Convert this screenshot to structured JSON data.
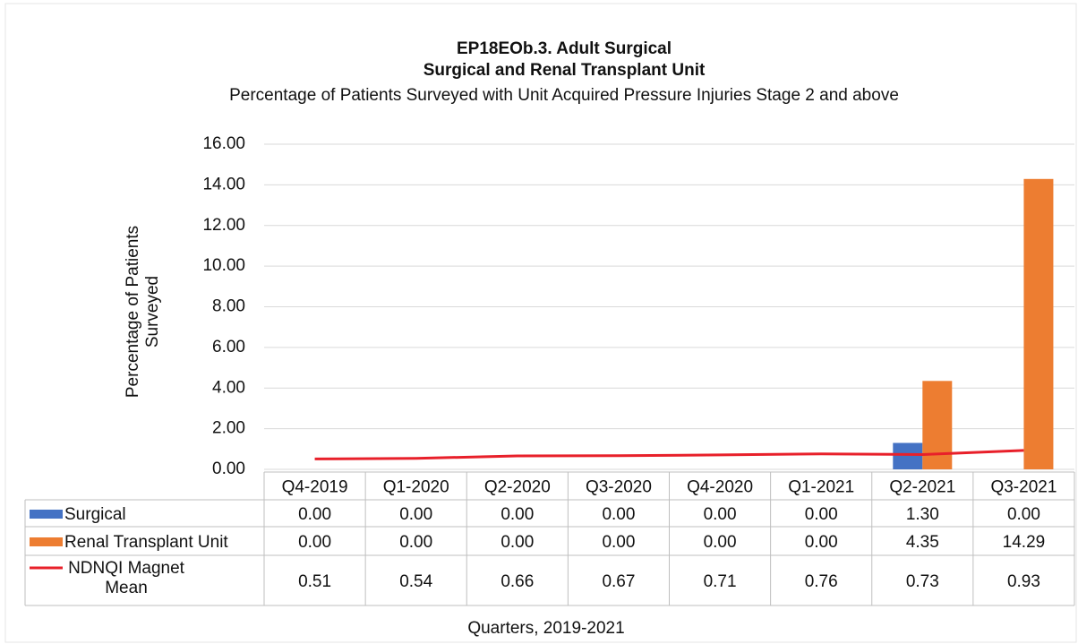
{
  "chart_data": {
    "type": "bar",
    "title": "EP18EOb.3.  Adult Surgical",
    "subtitle": "Surgical and Renal Transplant Unit",
    "description": "Percentage of Patients Surveyed with Unit Acquired Pressure Injuries Stage 2 and above",
    "y_label": "Percentage of Patients Surveyed",
    "x_label": "Quarters, 2019-2021",
    "categories": [
      "Q4-2019",
      "Q1-2020",
      "Q2-2020",
      "Q3-2020",
      "Q4-2020",
      "Q1-2021",
      "Q2-2021",
      "Q3-2021"
    ],
    "series": [
      {
        "name": "Surgical",
        "type": "bar",
        "color": "#4472c4",
        "values": [
          0,
          0,
          0,
          0,
          0,
          0,
          1.3,
          0
        ],
        "value_labels": [
          "0.00",
          "0.00",
          "0.00",
          "0.00",
          "0.00",
          "0.00",
          "1.30",
          "0.00"
        ]
      },
      {
        "name": "Renal Transplant Unit",
        "type": "bar",
        "color": "#ed7d31",
        "values": [
          0,
          0,
          0,
          0,
          0,
          0,
          4.35,
          14.29
        ],
        "value_labels": [
          "0.00",
          "0.00",
          "0.00",
          "0.00",
          "0.00",
          "0.00",
          "4.35",
          "14.29"
        ]
      },
      {
        "name": "NDNQI Magnet Mean",
        "type": "line",
        "color": "#e8202a",
        "values": [
          0.51,
          0.54,
          0.66,
          0.67,
          0.71,
          0.76,
          0.73,
          0.93
        ]
      }
    ],
    "ylim": [
      0,
      16
    ],
    "yticks": [
      {
        "value": 0,
        "label": "0.00"
      },
      {
        "value": 2,
        "label": "2.00"
      },
      {
        "value": 4,
        "label": "4.00"
      },
      {
        "value": 6,
        "label": "6.00"
      },
      {
        "value": 8,
        "label": "8.00"
      },
      {
        "value": 10,
        "label": "10.00"
      },
      {
        "value": 12,
        "label": "12.00"
      },
      {
        "value": 14,
        "label": "14.00"
      },
      {
        "value": 16,
        "label": "16.00"
      }
    ],
    "grid": true
  }
}
